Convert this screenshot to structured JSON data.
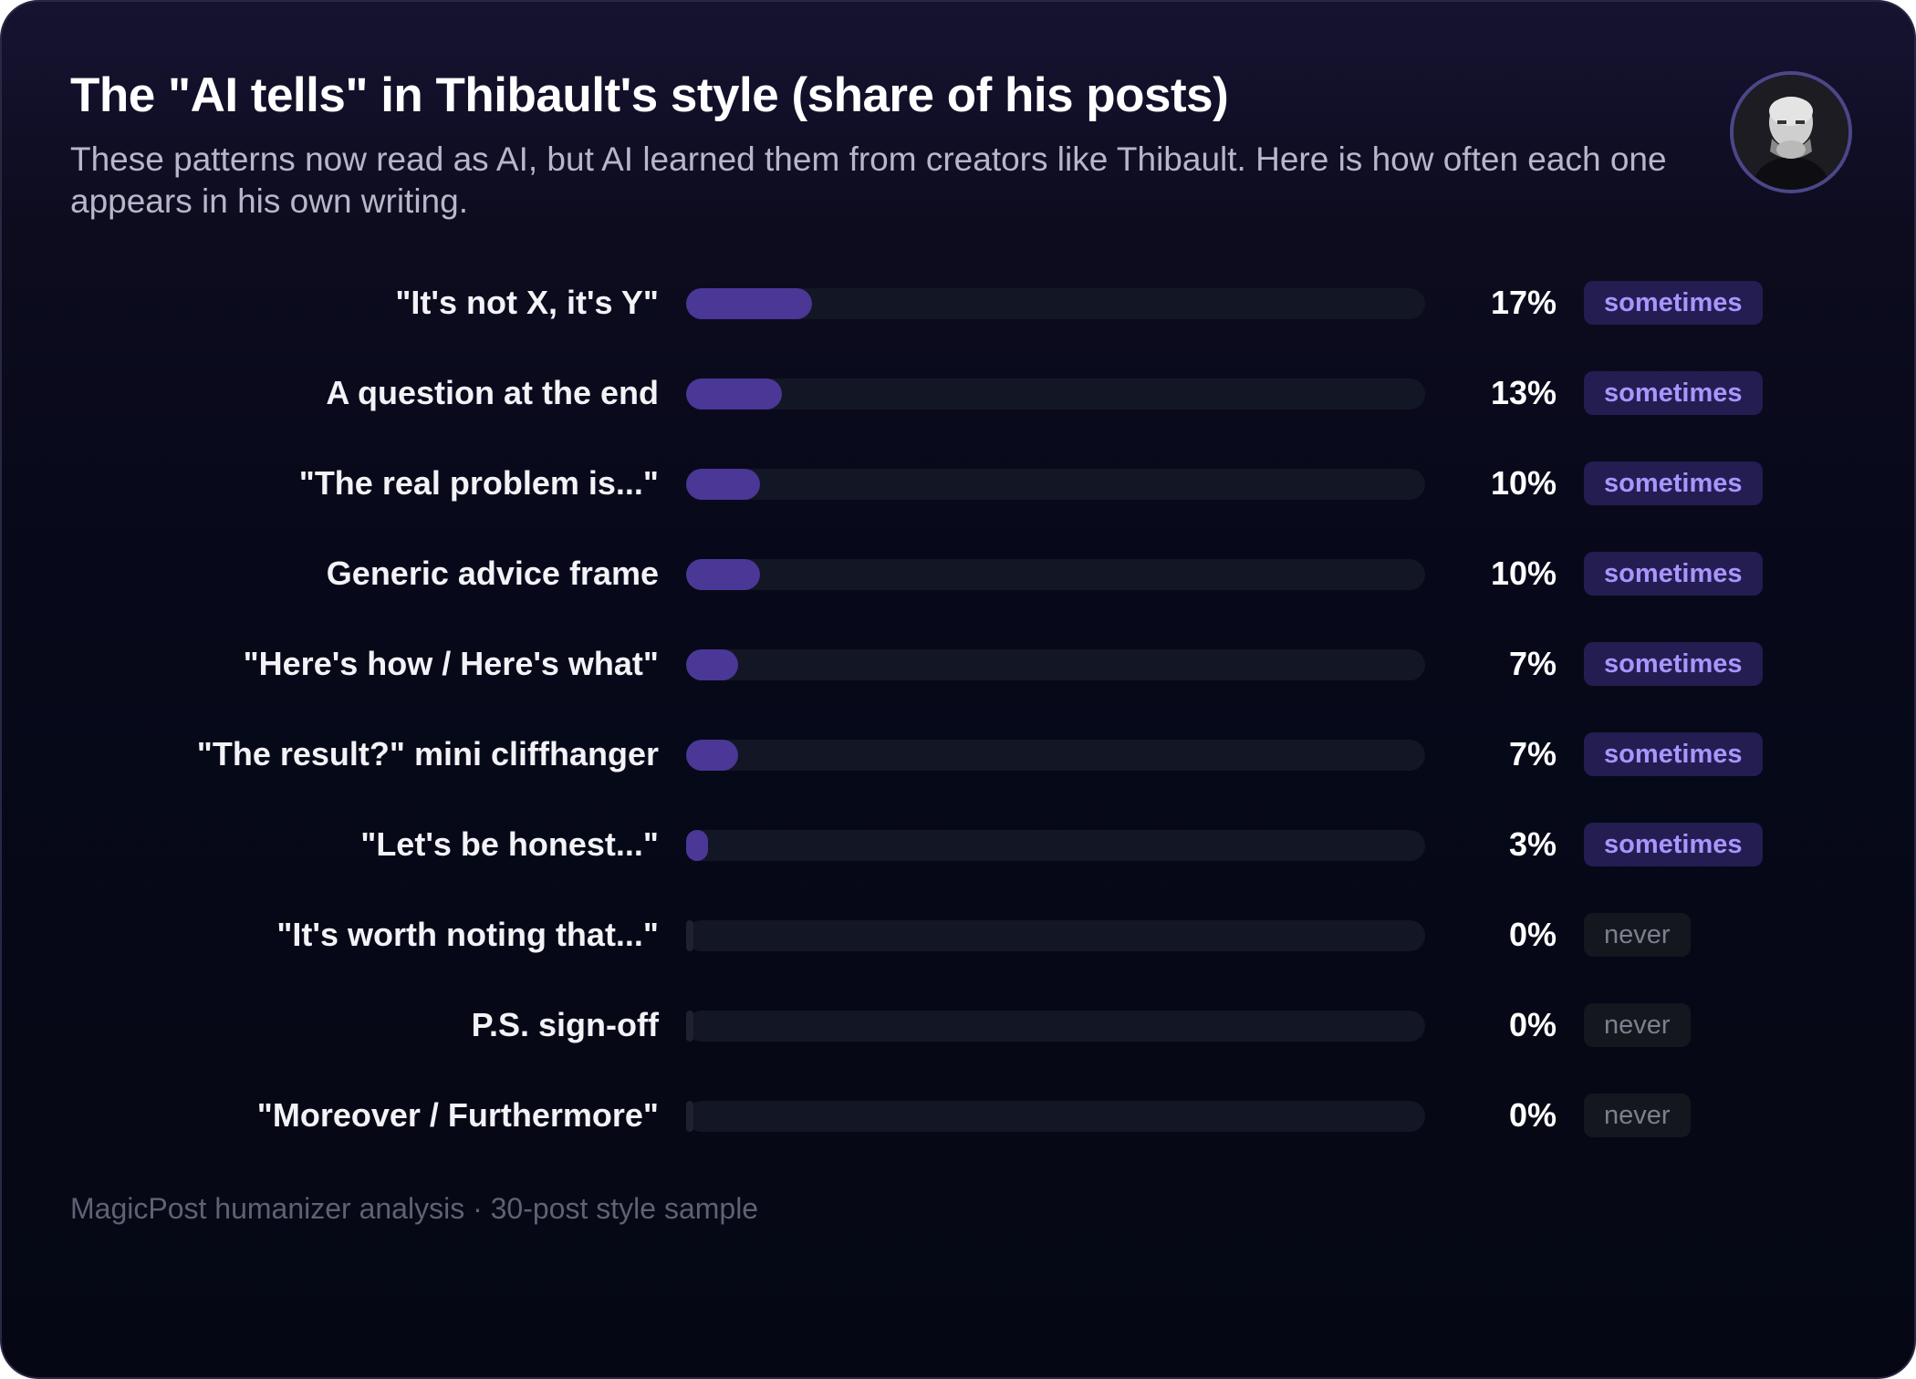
{
  "header": {
    "title": "The \"AI tells\" in Thibault's style (share of his posts)",
    "subtitle": "These patterns now read as AI, but AI learned them from creators like Thibault. Here is how often each one appears in his own writing."
  },
  "footer": {
    "source": "MagicPost humanizer analysis · 30-post style sample"
  },
  "colors": {
    "bar_fill": "#4a3796",
    "bar_track": "#131624",
    "badge_sometimes_bg": "#231d52",
    "badge_sometimes_text": "#a995ff",
    "badge_never_bg": "#15171f",
    "badge_never_text": "#7d7f8c"
  },
  "chart_data": {
    "type": "bar",
    "orientation": "horizontal",
    "title": "The \"AI tells\" in Thibault's style (share of his posts)",
    "subtitle": "These patterns now read as AI, but AI learned them from creators like Thibault. Here is how often each one appears in his own writing.",
    "xlim": [
      0,
      100
    ],
    "grid": false,
    "categories": [
      "\"It's not X, it's Y\"",
      "A question at the end",
      "\"The real problem is...\"",
      "Generic advice frame",
      "\"Here's how / Here's what\"",
      "\"The result?\" mini cliffhanger",
      "\"Let's be honest...\"",
      "\"It's worth noting that...\"",
      "P.S. sign-off",
      "\"Moreover / Furthermore\""
    ],
    "values": [
      17,
      13,
      10,
      10,
      7,
      7,
      3,
      0,
      0,
      0
    ],
    "value_labels": [
      "17%",
      "13%",
      "10%",
      "10%",
      "7%",
      "7%",
      "3%",
      "0%",
      "0%",
      "0%"
    ],
    "badges": [
      "sometimes",
      "sometimes",
      "sometimes",
      "sometimes",
      "sometimes",
      "sometimes",
      "sometimes",
      "never",
      "never",
      "never"
    ]
  }
}
